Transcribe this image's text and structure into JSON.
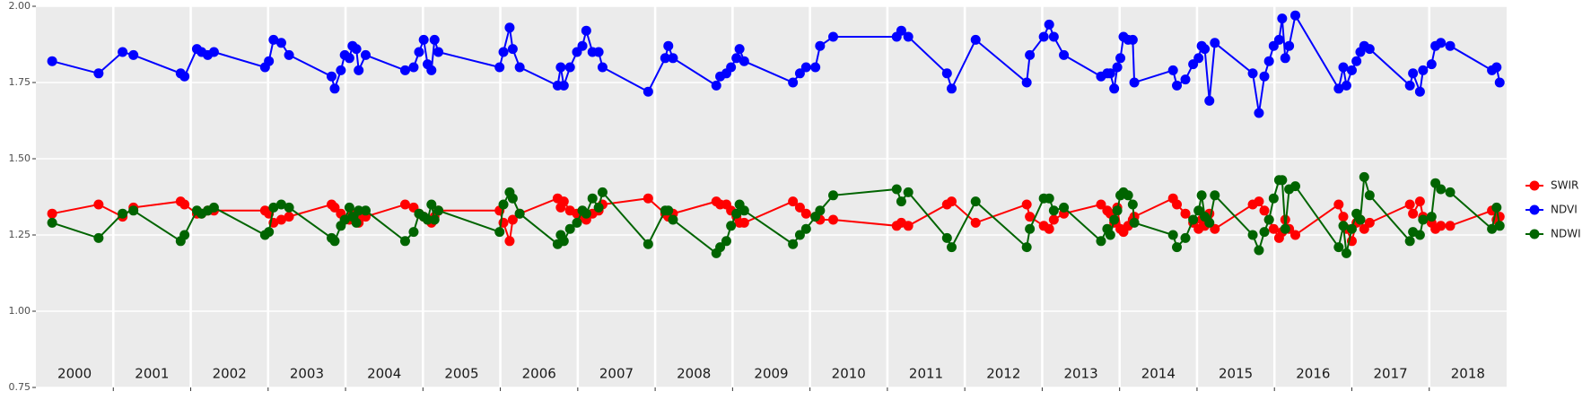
{
  "chart_data": {
    "type": "line",
    "x": [
      2000.21,
      2000.81,
      2001.12,
      2001.26,
      2001.87,
      2001.92,
      2002.08,
      2002.14,
      2002.22,
      2002.3,
      2002.96,
      2003.01,
      2003.07,
      2003.17,
      2003.27,
      2003.82,
      2003.86,
      2003.94,
      2003.99,
      2004.05,
      2004.09,
      2004.14,
      2004.17,
      2004.26,
      2004.77,
      2004.88,
      2004.95,
      2005.01,
      2005.06,
      2005.11,
      2005.15,
      2005.2,
      2005.99,
      2006.04,
      2006.12,
      2006.16,
      2006.25,
      2006.74,
      2006.78,
      2006.82,
      2006.9,
      2006.99,
      2007.06,
      2007.11,
      2007.19,
      2007.27,
      2007.32,
      2007.91,
      2008.13,
      2008.17,
      2008.23,
      2008.79,
      2008.84,
      2008.92,
      2008.98,
      2009.05,
      2009.09,
      2009.15,
      2009.78,
      2009.87,
      2009.95,
      2010.07,
      2010.13,
      2010.3,
      2011.12,
      2011.18,
      2011.27,
      2011.77,
      2011.83,
      2012.14,
      2012.8,
      2012.84,
      2013.02,
      2013.09,
      2013.15,
      2013.28,
      2013.76,
      2013.84,
      2013.88,
      2013.93,
      2013.97,
      2014.01,
      2014.05,
      2014.11,
      2014.17,
      2014.19,
      2014.69,
      2014.74,
      2014.85,
      2014.95,
      2015.02,
      2015.06,
      2015.1,
      2015.16,
      2015.23,
      2015.72,
      2015.8,
      2015.87,
      2015.93,
      2015.99,
      2016.06,
      2016.1,
      2016.14,
      2016.19,
      2016.27,
      2016.83,
      2016.89,
      2016.93,
      2017.0,
      2017.06,
      2017.11,
      2017.16,
      2017.23,
      2017.75,
      2017.79,
      2017.88,
      2017.92,
      2018.03,
      2018.08,
      2018.15,
      2018.27,
      2018.81,
      2018.87,
      2018.91
    ],
    "series": [
      {
        "name": "SWIR",
        "color": "#ff0000",
        "values": [
          1.32,
          1.35,
          1.31,
          1.34,
          1.36,
          1.35,
          1.32,
          1.32,
          1.33,
          1.33,
          1.33,
          1.32,
          1.29,
          1.3,
          1.31,
          1.35,
          1.34,
          1.32,
          1.3,
          1.3,
          1.32,
          1.31,
          1.29,
          1.31,
          1.35,
          1.34,
          1.32,
          1.31,
          1.3,
          1.29,
          1.31,
          1.33,
          1.33,
          1.29,
          1.23,
          1.3,
          1.32,
          1.37,
          1.34,
          1.36,
          1.33,
          1.32,
          1.31,
          1.3,
          1.32,
          1.33,
          1.35,
          1.37,
          1.32,
          1.31,
          1.32,
          1.36,
          1.35,
          1.35,
          1.33,
          1.31,
          1.29,
          1.29,
          1.36,
          1.34,
          1.32,
          1.31,
          1.3,
          1.3,
          1.28,
          1.29,
          1.28,
          1.35,
          1.36,
          1.29,
          1.35,
          1.31,
          1.28,
          1.27,
          1.3,
          1.32,
          1.35,
          1.33,
          1.32,
          1.29,
          1.34,
          1.27,
          1.26,
          1.28,
          1.3,
          1.31,
          1.37,
          1.35,
          1.32,
          1.29,
          1.27,
          1.3,
          1.28,
          1.32,
          1.27,
          1.35,
          1.36,
          1.33,
          1.3,
          1.27,
          1.24,
          1.26,
          1.3,
          1.27,
          1.25,
          1.35,
          1.31,
          1.27,
          1.23,
          1.29,
          1.3,
          1.27,
          1.29,
          1.35,
          1.32,
          1.36,
          1.31,
          1.29,
          1.27,
          1.28,
          1.28,
          1.33,
          1.3,
          1.31
        ]
      },
      {
        "name": "NDVI",
        "color": "#0000ff",
        "values": [
          1.82,
          1.78,
          1.85,
          1.84,
          1.78,
          1.77,
          1.86,
          1.85,
          1.84,
          1.85,
          1.8,
          1.82,
          1.89,
          1.88,
          1.84,
          1.77,
          1.73,
          1.79,
          1.84,
          1.83,
          1.87,
          1.86,
          1.79,
          1.84,
          1.79,
          1.8,
          1.85,
          1.89,
          1.81,
          1.79,
          1.89,
          1.85,
          1.8,
          1.85,
          1.93,
          1.86,
          1.8,
          1.74,
          1.8,
          1.74,
          1.8,
          1.85,
          1.87,
          1.92,
          1.85,
          1.85,
          1.8,
          1.72,
          1.83,
          1.87,
          1.83,
          1.74,
          1.77,
          1.78,
          1.8,
          1.83,
          1.86,
          1.82,
          1.75,
          1.78,
          1.8,
          1.8,
          1.87,
          1.9,
          1.9,
          1.92,
          1.9,
          1.78,
          1.73,
          1.89,
          1.75,
          1.84,
          1.9,
          1.94,
          1.9,
          1.84,
          1.77,
          1.78,
          1.78,
          1.73,
          1.8,
          1.83,
          1.9,
          1.89,
          1.89,
          1.75,
          1.79,
          1.74,
          1.76,
          1.81,
          1.83,
          1.87,
          1.86,
          1.69,
          1.88,
          1.78,
          1.65,
          1.77,
          1.82,
          1.87,
          1.89,
          1.96,
          1.83,
          1.87,
          1.97,
          1.73,
          1.8,
          1.74,
          1.79,
          1.82,
          1.85,
          1.87,
          1.86,
          1.74,
          1.78,
          1.72,
          1.79,
          1.81,
          1.87,
          1.88,
          1.87,
          1.79,
          1.8,
          1.75
        ]
      },
      {
        "name": "NDWI",
        "color": "#006400",
        "values": [
          1.29,
          1.24,
          1.32,
          1.33,
          1.23,
          1.25,
          1.33,
          1.32,
          1.33,
          1.34,
          1.25,
          1.26,
          1.34,
          1.35,
          1.34,
          1.24,
          1.23,
          1.28,
          1.3,
          1.34,
          1.31,
          1.29,
          1.33,
          1.33,
          1.23,
          1.26,
          1.32,
          1.31,
          1.3,
          1.35,
          1.3,
          1.33,
          1.26,
          1.35,
          1.39,
          1.37,
          1.32,
          1.22,
          1.25,
          1.23,
          1.27,
          1.29,
          1.33,
          1.32,
          1.37,
          1.34,
          1.39,
          1.22,
          1.33,
          1.33,
          1.3,
          1.19,
          1.21,
          1.23,
          1.28,
          1.32,
          1.35,
          1.33,
          1.22,
          1.25,
          1.27,
          1.31,
          1.33,
          1.38,
          1.4,
          1.36,
          1.39,
          1.24,
          1.21,
          1.36,
          1.21,
          1.27,
          1.37,
          1.37,
          1.33,
          1.34,
          1.23,
          1.27,
          1.25,
          1.3,
          1.33,
          1.38,
          1.39,
          1.38,
          1.35,
          1.29,
          1.25,
          1.21,
          1.24,
          1.3,
          1.33,
          1.38,
          1.31,
          1.29,
          1.38,
          1.25,
          1.2,
          1.26,
          1.3,
          1.37,
          1.43,
          1.43,
          1.27,
          1.4,
          1.41,
          1.21,
          1.28,
          1.19,
          1.27,
          1.32,
          1.3,
          1.44,
          1.38,
          1.23,
          1.26,
          1.25,
          1.3,
          1.31,
          1.42,
          1.4,
          1.39,
          1.27,
          1.34,
          1.28
        ]
      }
    ],
    "year_labels": [
      "2000",
      "2001",
      "2002",
      "2003",
      "2004",
      "2005",
      "2006",
      "2007",
      "2008",
      "2009",
      "2010",
      "2011",
      "2012",
      "2013",
      "2014",
      "2015",
      "2016",
      "2017",
      "2018"
    ],
    "xlim": [
      2000,
      2019
    ],
    "xticks": [
      2001,
      2002,
      2003,
      2004,
      2005,
      2006,
      2007,
      2008,
      2009,
      2010,
      2011,
      2012,
      2013,
      2014,
      2015,
      2016,
      2017,
      2018
    ],
    "ylim": [
      0.75,
      2.0
    ],
    "yticks": [
      0.75,
      {
        "value": 1.0,
        "label": "1.00"
      },
      1.25,
      {
        "value": 1.5,
        "label": "1.50"
      },
      1.75,
      {
        "value": 2.0,
        "label": "2.00"
      }
    ],
    "grid": true,
    "legend": "right"
  }
}
